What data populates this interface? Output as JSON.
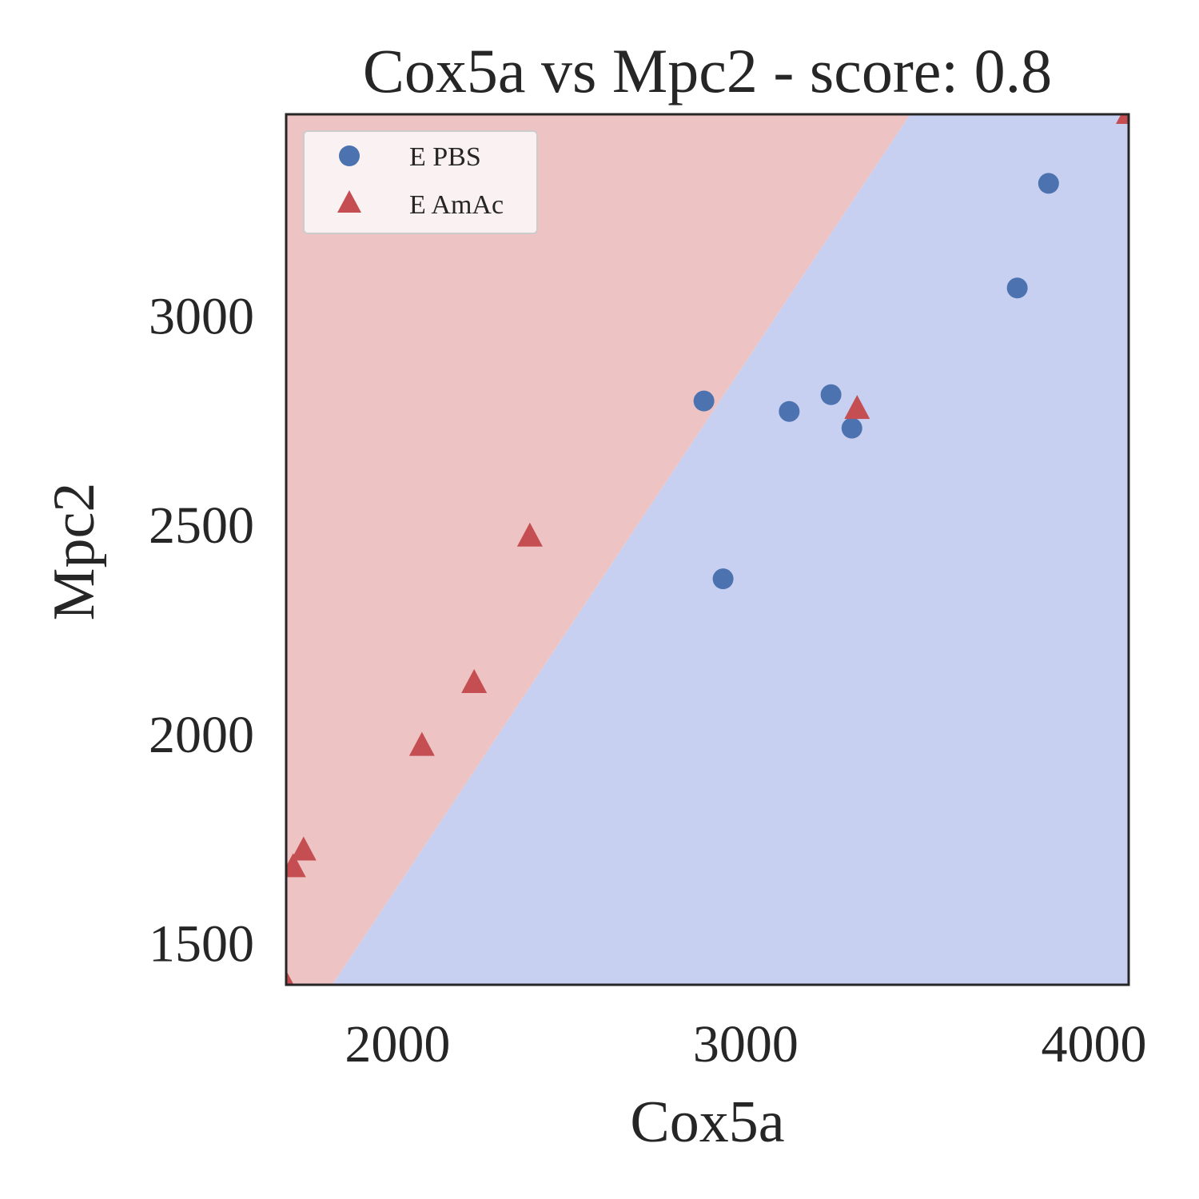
{
  "chart_data": {
    "type": "scatter",
    "title": "Cox5a vs Mpc2 - score: 0.8",
    "xlabel": "Cox5a",
    "ylabel": "Mpc2",
    "xlim": [
      1680,
      4100
    ],
    "ylim": [
      1400,
      3480
    ],
    "xticks": [
      "2000",
      "3000",
      "4000"
    ],
    "yticks": [
      "1500",
      "2000",
      "2500",
      "3000"
    ],
    "grid": false,
    "legend_position": "top-left",
    "decision_regions": {
      "boundary_points": [
        [
          1805,
          1400
        ],
        [
          3480,
          3480
        ]
      ],
      "left_region_color": "#edc4c3",
      "right_region_color": "#c8d0f1",
      "left_region_class": "E AmAc",
      "right_region_class": "E PBS"
    },
    "series": [
      {
        "name": "E PBS",
        "marker": "circle",
        "color": "#4c72b0",
        "points": [
          [
            2880,
            2795
          ],
          [
            2935,
            2370
          ],
          [
            3125,
            2770
          ],
          [
            3245,
            2810
          ],
          [
            3305,
            2730
          ],
          [
            3780,
            3065
          ],
          [
            3870,
            3315
          ]
        ]
      },
      {
        "name": "E AmAc",
        "marker": "triangle",
        "color": "#c44e52",
        "points": [
          [
            1680,
            1400
          ],
          [
            1700,
            1680
          ],
          [
            1730,
            1720
          ],
          [
            2070,
            1970
          ],
          [
            2220,
            2120
          ],
          [
            2380,
            2470
          ],
          [
            3320,
            2775
          ],
          [
            4100,
            3480
          ]
        ]
      }
    ]
  }
}
